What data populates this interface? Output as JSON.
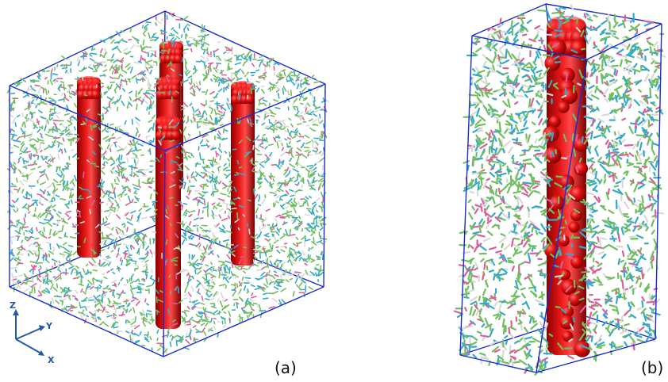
{
  "panels": [
    {
      "label": "(a)"
    },
    {
      "label": "(b)"
    }
  ],
  "axes": {
    "z": "Z",
    "y": "Y",
    "x": "X"
  },
  "colors": {
    "box_edge": "#1a2bd0",
    "nanotube": "#d40000",
    "molecule_green": "#6fbf5f",
    "molecule_cyan": "#35a9c9",
    "molecule_pink": "#d9609a",
    "molecule_white": "#d8d8d8",
    "axis": "#1f5aa8"
  }
}
